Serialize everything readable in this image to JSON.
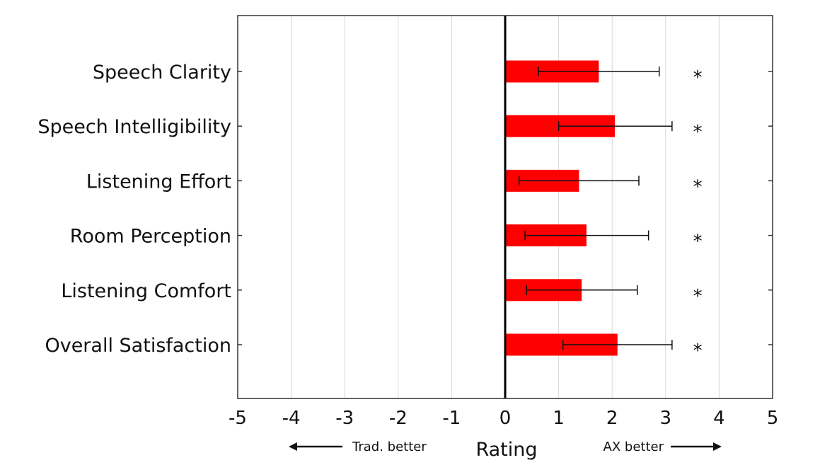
{
  "chart_data": {
    "type": "bar",
    "orientation": "horizontal",
    "title": "",
    "xlabel": "Rating",
    "ylabel": "",
    "xlim": [
      -5,
      5
    ],
    "xticks": [
      "-5",
      "-4",
      "-3",
      "-2",
      "-1",
      "0",
      "1",
      "2",
      "3",
      "4",
      "5"
    ],
    "grid": "vertical",
    "bar_color": "#ff0000",
    "categories": [
      "Speech Clarity",
      "Speech Intelligibility",
      "Listening Effort",
      "Room Perception",
      "Listening Comfort",
      "Overall Satisfaction"
    ],
    "values": [
      1.75,
      2.05,
      1.38,
      1.52,
      1.43,
      2.1
    ],
    "error_low": [
      0.62,
      1.0,
      0.26,
      0.37,
      0.4,
      1.08
    ],
    "error_high": [
      2.88,
      3.12,
      2.5,
      2.68,
      2.47,
      3.12
    ],
    "significance": [
      "*",
      "*",
      "*",
      "*",
      "*",
      "*"
    ],
    "annotations": {
      "left": "Trad. better",
      "right": "AX better"
    }
  }
}
